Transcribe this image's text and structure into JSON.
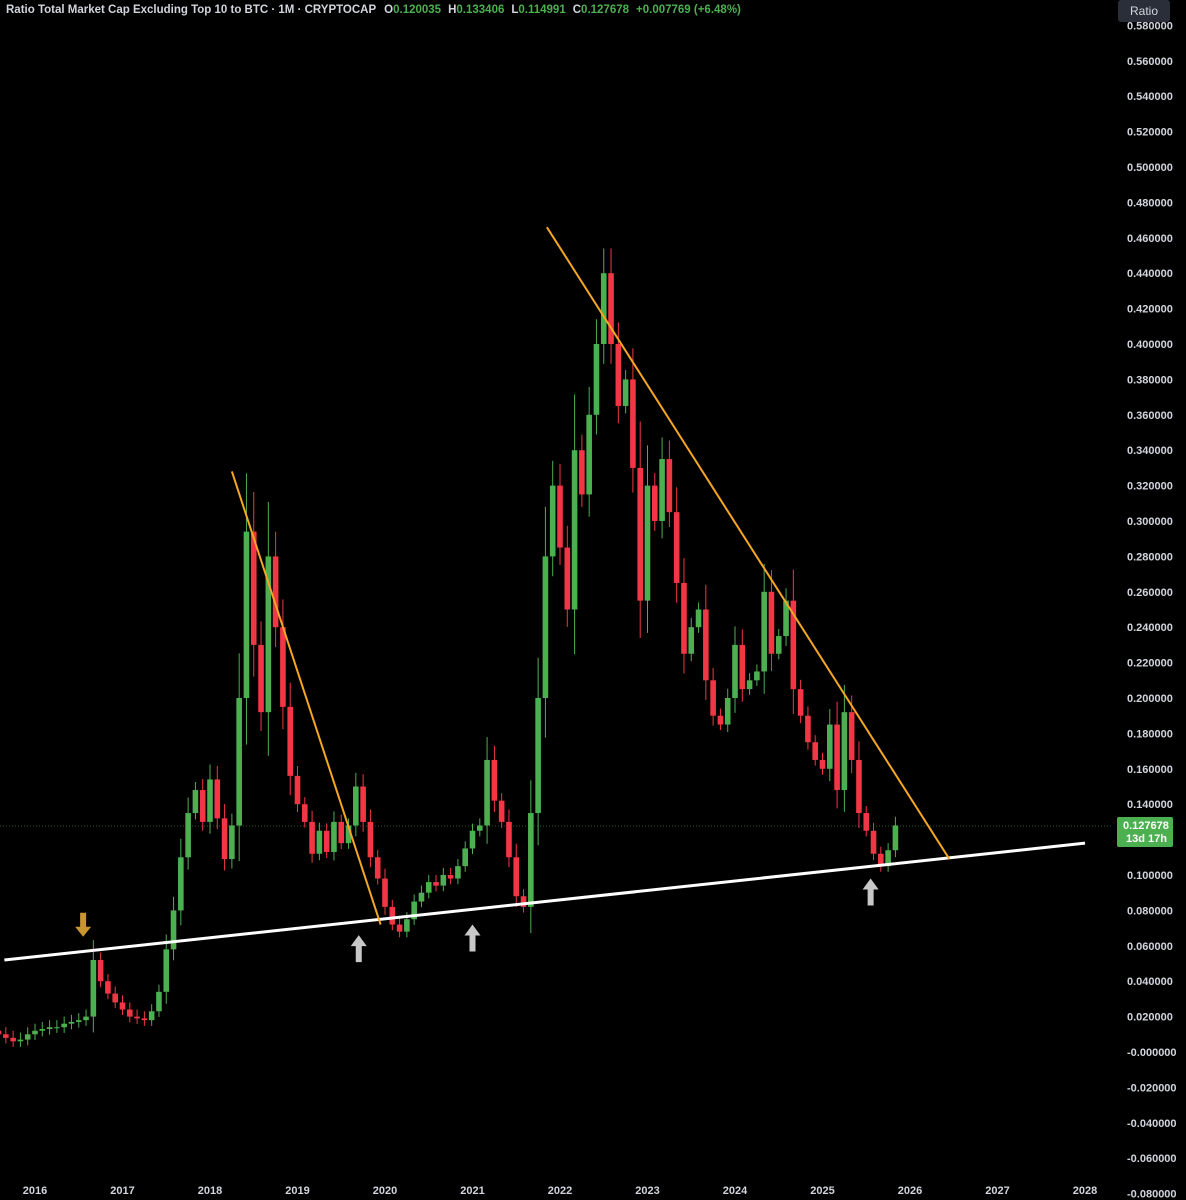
{
  "header": {
    "title": "Ratio Total Market Cap Excluding Top 10 to BTC · 1M · CRYPTOCAP",
    "open_label": "O",
    "open": "0.120035",
    "high_label": "H",
    "high": "0.133406",
    "low_label": "L",
    "low": "0.114991",
    "close_label": "C",
    "close": "0.127678",
    "change": "+0.007769 (+6.48%)"
  },
  "toolbar": {
    "scale_mode_label": "Ratio"
  },
  "price_tag": {
    "value": "0.127678",
    "countdown": "13d 17h"
  },
  "colors": {
    "up": "#4caf50",
    "down": "#f23645",
    "trendline": "#f5a623",
    "support": "#ffffff",
    "arrow_marker": "#c8962e",
    "arrow_touch": "#c8c8c8",
    "price_tag": "#4caf50"
  },
  "chart_data": {
    "type": "candlestick",
    "title": "Ratio Total Market Cap Excluding Top 10 to BTC · 1M · CRYPTOCAP",
    "x_ticks": [
      "2016",
      "2017",
      "2018",
      "2019",
      "2020",
      "2021",
      "2022",
      "2023",
      "2024",
      "2025",
      "2026",
      "2027",
      "2028"
    ],
    "y_ticks": [
      "0.580000",
      "0.560000",
      "0.540000",
      "0.520000",
      "0.500000",
      "0.480000",
      "0.460000",
      "0.440000",
      "0.420000",
      "0.400000",
      "0.380000",
      "0.360000",
      "0.340000",
      "0.320000",
      "0.300000",
      "0.280000",
      "0.260000",
      "0.240000",
      "0.220000",
      "0.200000",
      "0.180000",
      "0.160000",
      "0.140000",
      "0.120000",
      "0.100000",
      "0.080000",
      "0.060000",
      "0.040000",
      "0.020000",
      "-0.000000",
      "-0.020000",
      "-0.040000",
      "-0.060000",
      "-0.080000"
    ],
    "ylim": [
      -0.09,
      0.6
    ],
    "x_start": 2015.5,
    "current_price": 0.127678,
    "closes": [
      0.012,
      0.01,
      0.008,
      0.006,
      0.007,
      0.01,
      0.012,
      0.013,
      0.014,
      0.014,
      0.016,
      0.017,
      0.018,
      0.02,
      0.052,
      0.04,
      0.033,
      0.028,
      0.024,
      0.02,
      0.019,
      0.018,
      0.023,
      0.034,
      0.058,
      0.08,
      0.11,
      0.135,
      0.148,
      0.13,
      0.154,
      0.132,
      0.109,
      0.128,
      0.2,
      0.294,
      0.23,
      0.192,
      0.28,
      0.24,
      0.195,
      0.156,
      0.14,
      0.13,
      0.112,
      0.125,
      0.113,
      0.13,
      0.118,
      0.128,
      0.15,
      0.13,
      0.11,
      0.098,
      0.082,
      0.072,
      0.068,
      0.075,
      0.085,
      0.09,
      0.096,
      0.094,
      0.1,
      0.098,
      0.105,
      0.115,
      0.125,
      0.128,
      0.165,
      0.142,
      0.13,
      0.11,
      0.088,
      0.082,
      0.135,
      0.2,
      0.28,
      0.32,
      0.285,
      0.25,
      0.34,
      0.315,
      0.36,
      0.4,
      0.44,
      0.4,
      0.365,
      0.38,
      0.33,
      0.255,
      0.32,
      0.3,
      0.335,
      0.305,
      0.265,
      0.225,
      0.24,
      0.25,
      0.21,
      0.19,
      0.185,
      0.2,
      0.23,
      0.205,
      0.21,
      0.215,
      0.26,
      0.225,
      0.235,
      0.255,
      0.205,
      0.19,
      0.175,
      0.165,
      0.16,
      0.185,
      0.148,
      0.192,
      0.165,
      0.135,
      0.125,
      0.112,
      0.105,
      0.114,
      0.128
    ],
    "annotations": [
      {
        "type": "support-line",
        "from": [
          2015.65,
          0.052
        ],
        "to": [
          2028.0,
          0.118
        ]
      },
      {
        "type": "trendline",
        "from": [
          2018.25,
          0.328
        ],
        "to": [
          2019.95,
          0.072
        ]
      },
      {
        "type": "trendline",
        "from": [
          2021.85,
          0.466
        ],
        "to": [
          2026.45,
          0.109
        ]
      },
      {
        "type": "arrow-down",
        "at": [
          2016.55,
          0.064
        ]
      },
      {
        "type": "arrow-up",
        "at": [
          2019.7,
          0.066
        ]
      },
      {
        "type": "arrow-up",
        "at": [
          2021.0,
          0.072
        ]
      },
      {
        "type": "arrow-up",
        "at": [
          2025.55,
          0.098
        ]
      }
    ]
  }
}
